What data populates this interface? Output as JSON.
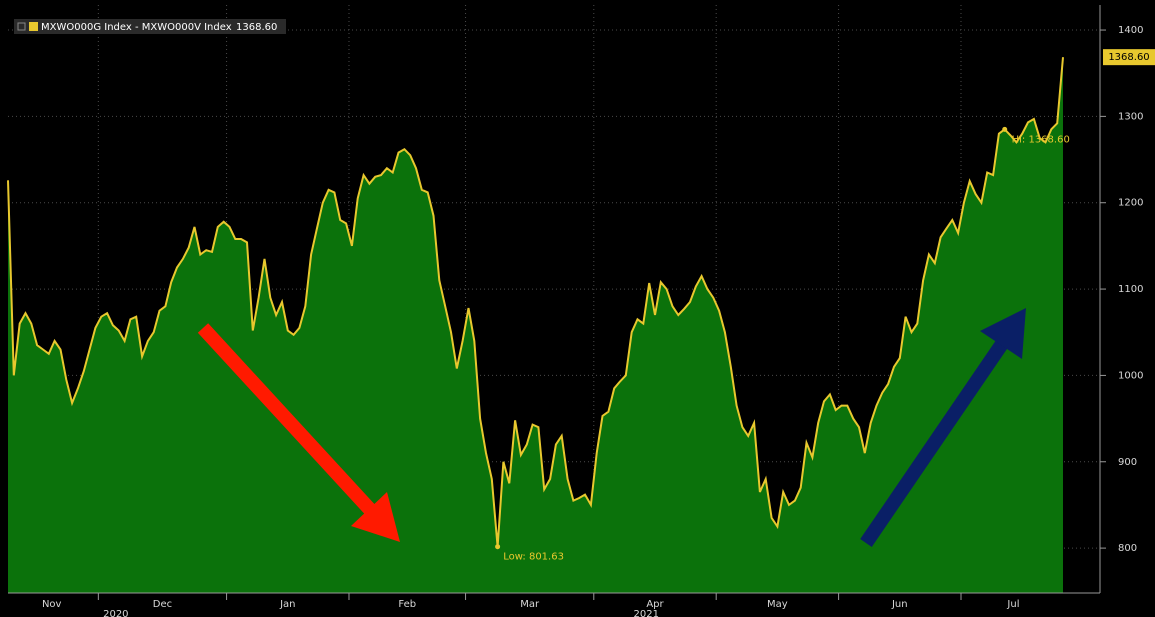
{
  "chart_data": {
    "type": "area",
    "series": [
      {
        "name": "MXWO000G Index - MXWO000V Index",
        "last_label": "1368.60",
        "color": "#e8c82e",
        "fill": "#0b720b",
        "values": [
          1226,
          1000,
          1060,
          1072,
          1060,
          1035,
          1030,
          1025,
          1040,
          1030,
          995,
          968,
          985,
          1005,
          1030,
          1055,
          1068,
          1072,
          1058,
          1052,
          1040,
          1065,
          1068,
          1022,
          1040,
          1050,
          1075,
          1080,
          1108,
          1125,
          1135,
          1148,
          1172,
          1140,
          1145,
          1143,
          1172,
          1178,
          1172,
          1158,
          1158,
          1154,
          1052,
          1090,
          1135,
          1090,
          1070,
          1085,
          1052,
          1047,
          1055,
          1080,
          1140,
          1170,
          1200,
          1215,
          1212,
          1180,
          1176,
          1150,
          1205,
          1232,
          1222,
          1230,
          1232,
          1240,
          1235,
          1258,
          1262,
          1255,
          1240,
          1215,
          1212,
          1185,
          1110,
          1080,
          1050,
          1008,
          1040,
          1078,
          1040,
          950,
          910,
          880,
          801.63,
          900,
          875,
          948,
          908,
          920,
          943,
          940,
          868,
          880,
          920,
          930,
          880,
          855,
          858,
          862,
          850,
          910,
          953,
          958,
          985,
          993,
          1000,
          1050,
          1065,
          1060,
          1107,
          1070,
          1108,
          1100,
          1080,
          1070,
          1077,
          1085,
          1103,
          1115,
          1100,
          1090,
          1075,
          1050,
          1010,
          965,
          940,
          930,
          945,
          865,
          880,
          835,
          825,
          865,
          850,
          855,
          870,
          922,
          905,
          945,
          970,
          978,
          960,
          965,
          965,
          950,
          940,
          910,
          945,
          965,
          980,
          990,
          1010,
          1020,
          1068,
          1050,
          1060,
          1110,
          1140,
          1130,
          1160,
          1170,
          1180,
          1165,
          1200,
          1225,
          1210,
          1200,
          1235,
          1232,
          1280,
          1285,
          1278,
          1270,
          1280,
          1293,
          1297,
          1275,
          1270,
          1285,
          1292,
          1368.6
        ],
        "value_labels": [
          null,
          null,
          null,
          null,
          null,
          null,
          null,
          null,
          null,
          null,
          null,
          null,
          null,
          null,
          null,
          null,
          null,
          null,
          null,
          null,
          null,
          null,
          null,
          null,
          null,
          null,
          null,
          null,
          null,
          null,
          null,
          null,
          null,
          null,
          null,
          null,
          null,
          null,
          null,
          null,
          null,
          null,
          null,
          null,
          null,
          null,
          null,
          null,
          null,
          null,
          null,
          null,
          null,
          null,
          null,
          null,
          null,
          null,
          null,
          null,
          null,
          null,
          null,
          null,
          null,
          null,
          null,
          null,
          null,
          null,
          null,
          null,
          null,
          null,
          null,
          null,
          null,
          null,
          null,
          null,
          null,
          null,
          null,
          null,
          "Low: 801.63",
          null,
          null,
          null,
          null,
          null,
          null,
          null,
          null,
          null,
          null,
          null,
          null,
          null,
          null,
          null,
          null,
          null,
          null,
          null,
          null,
          null,
          null,
          null,
          null,
          null,
          null,
          null,
          null,
          null,
          null,
          null,
          null,
          null,
          null,
          null,
          null,
          null,
          null,
          null,
          null,
          null,
          null,
          null,
          null,
          null,
          null,
          null,
          null,
          null,
          null,
          null,
          null,
          null,
          null,
          null,
          null,
          null,
          null,
          null,
          null,
          null,
          null,
          null,
          null,
          null,
          null,
          null,
          null,
          null,
          null,
          null,
          null,
          null,
          null,
          null,
          null,
          null,
          null,
          null,
          null,
          null,
          null,
          null,
          null,
          null,
          null,
          "Hi: 1368.60"
        ]
      }
    ],
    "x": [
      "2020-11",
      "2020-11",
      "2020-11",
      "2020-11",
      "2020-11",
      "2020-11",
      "2020-11",
      "2020-11",
      "2020-11",
      "2020-11",
      "2020-11",
      "2020-11",
      "2020-11",
      "2020-11",
      "2020-11",
      "2020-11",
      "2020-12",
      "2020-12",
      "2020-12",
      "2020-12",
      "2020-12",
      "2020-12",
      "2020-12",
      "2020-12",
      "2020-12",
      "2020-12",
      "2020-12",
      "2020-12",
      "2020-12",
      "2020-12",
      "2020-12",
      "2020-12",
      "2020-12",
      "2020-12",
      "2020-12",
      "2020-12",
      "2020-12",
      "2020-12",
      "2021-01",
      "2021-01",
      "2021-01",
      "2021-01",
      "2021-01",
      "2021-01",
      "2021-01",
      "2021-01",
      "2021-01",
      "2021-01",
      "2021-01",
      "2021-01",
      "2021-01",
      "2021-01",
      "2021-01",
      "2021-01",
      "2021-01",
      "2021-01",
      "2021-01",
      "2021-01",
      "2021-01",
      "2021-02",
      "2021-02",
      "2021-02",
      "2021-02",
      "2021-02",
      "2021-02",
      "2021-02",
      "2021-02",
      "2021-02",
      "2021-02",
      "2021-02",
      "2021-02",
      "2021-02",
      "2021-02",
      "2021-02",
      "2021-02",
      "2021-02",
      "2021-02",
      "2021-02",
      "2021-02",
      "2021-03",
      "2021-03",
      "2021-03",
      "2021-03",
      "2021-03",
      "2021-03",
      "2021-03",
      "2021-03",
      "2021-03",
      "2021-03",
      "2021-03",
      "2021-03",
      "2021-03",
      "2021-03",
      "2021-03",
      "2021-03",
      "2021-03",
      "2021-03",
      "2021-03",
      "2021-03",
      "2021-03",
      "2021-03",
      "2021-04",
      "2021-04",
      "2021-04",
      "2021-04",
      "2021-04",
      "2021-04",
      "2021-04",
      "2021-04",
      "2021-04",
      "2021-04",
      "2021-04",
      "2021-04",
      "2021-04",
      "2021-04",
      "2021-04",
      "2021-04",
      "2021-04",
      "2021-04",
      "2021-04",
      "2021-04",
      "2021-04",
      "2021-05",
      "2021-05",
      "2021-05",
      "2021-05",
      "2021-05",
      "2021-05",
      "2021-05",
      "2021-05",
      "2021-05",
      "2021-05",
      "2021-05",
      "2021-05",
      "2021-05",
      "2021-05",
      "2021-05",
      "2021-05",
      "2021-05",
      "2021-05",
      "2021-05",
      "2021-05",
      "2021-05",
      "2021-06",
      "2021-06",
      "2021-06",
      "2021-06",
      "2021-06",
      "2021-06",
      "2021-06",
      "2021-06",
      "2021-06",
      "2021-06",
      "2021-06",
      "2021-06",
      "2021-06",
      "2021-06",
      "2021-06",
      "2021-06",
      "2021-06",
      "2021-06",
      "2021-06",
      "2021-06",
      "2021-06",
      "2021-07",
      "2021-07",
      "2021-07",
      "2021-07",
      "2021-07",
      "2021-07",
      "2021-07",
      "2021-07",
      "2021-07",
      "2021-07",
      "2021-07",
      "2021-07",
      "2021-07",
      "2021-07",
      "2021-07",
      "2021-07",
      "2021-07",
      "2021-07"
    ],
    "xticks": [
      {
        "value": "2020-11",
        "label": "Nov"
      },
      {
        "value": "2020-12",
        "label": "Dec"
      },
      {
        "value": "2021-01",
        "label": "Jan"
      },
      {
        "value": "2021-02",
        "label": "Feb"
      },
      {
        "value": "2021-03",
        "label": "Mar"
      },
      {
        "value": "2021-04",
        "label": "Apr"
      },
      {
        "value": "2021-05",
        "label": "May"
      },
      {
        "value": "2021-06",
        "label": "Jun"
      },
      {
        "value": "2021-07",
        "label": "Jul"
      }
    ],
    "year_ticks": [
      2020,
      2021
    ],
    "ylim": [
      748,
      1429
    ],
    "yticks": [
      800,
      900,
      1000,
      1100,
      1200,
      1300,
      1400
    ],
    "grid": true
  }
}
